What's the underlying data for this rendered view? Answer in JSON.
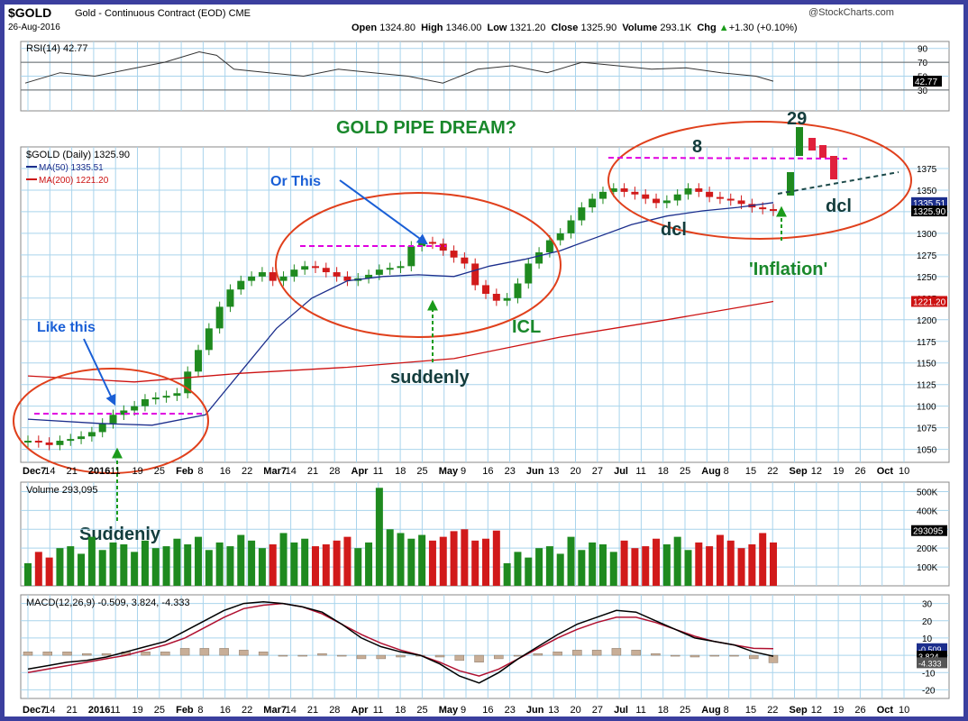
{
  "header": {
    "symbol": "$GOLD",
    "description": "Gold - Continuous Contract (EOD)  CME",
    "watermark": "@StockCharts.com",
    "date": "26-Aug-2016",
    "open_label": "Open",
    "open": "1324.80",
    "high_label": "High",
    "high": "1346.00",
    "low_label": "Low",
    "low": "1321.20",
    "close_label": "Close",
    "close": "1325.90",
    "volume_label": "Volume",
    "volume": "293.1K",
    "chg_label": "Chg",
    "chg": "+1.30 (+0.10%)",
    "chg_arrow": "▲"
  },
  "chart_data": [
    {
      "type": "line",
      "panel": "rsi",
      "label": "RSI(14) 42.77",
      "last_value": "42.77",
      "ylim": [
        0,
        100
      ],
      "yticks": [
        30,
        50,
        70,
        90
      ],
      "hlines": [
        30,
        70
      ],
      "approx_points": [
        [
          0,
          40
        ],
        [
          10,
          55
        ],
        [
          20,
          50
        ],
        [
          30,
          60
        ],
        [
          40,
          70
        ],
        [
          50,
          85
        ],
        [
          55,
          80
        ],
        [
          60,
          60
        ],
        [
          70,
          55
        ],
        [
          80,
          50
        ],
        [
          90,
          60
        ],
        [
          100,
          55
        ],
        [
          110,
          50
        ],
        [
          120,
          40
        ],
        [
          130,
          60
        ],
        [
          140,
          65
        ],
        [
          150,
          55
        ],
        [
          160,
          70
        ],
        [
          170,
          65
        ],
        [
          180,
          60
        ],
        [
          190,
          62
        ],
        [
          200,
          55
        ],
        [
          210,
          50
        ],
        [
          215,
          42.77
        ]
      ]
    },
    {
      "type": "candlestick",
      "panel": "price",
      "label": "$GOLD (Daily) 1325.90",
      "ylim": [
        1035,
        1400
      ],
      "yticks": [
        1050,
        1075,
        1100,
        1125,
        1150,
        1175,
        1200,
        1225,
        1250,
        1275,
        1300,
        1325,
        1350,
        1375
      ],
      "xticks": [
        "Dec7",
        "14",
        "21",
        "2016",
        "11",
        "19",
        "25",
        "Feb",
        "8",
        "16",
        "22",
        "Mar7",
        "14",
        "21",
        "28",
        "Apr",
        "11",
        "18",
        "25",
        "May",
        "9",
        "16",
        "23",
        "Jun",
        "13",
        "20",
        "27",
        "Jul",
        "11",
        "18",
        "25",
        "Aug",
        "8",
        "15",
        "22",
        "Sep",
        "12",
        "19",
        "26",
        "Oct",
        "10"
      ],
      "series": [
        {
          "name": "MA(50) 1335.51",
          "color": "#1c2e8c",
          "last": "1335.51",
          "approx_points": [
            [
              0,
              1085
            ],
            [
              20,
              1080
            ],
            [
              35,
              1078
            ],
            [
              50,
              1090
            ],
            [
              60,
              1140
            ],
            [
              70,
              1190
            ],
            [
              80,
              1225
            ],
            [
              90,
              1245
            ],
            [
              100,
              1250
            ],
            [
              110,
              1252
            ],
            [
              120,
              1250
            ],
            [
              130,
              1262
            ],
            [
              140,
              1270
            ],
            [
              150,
              1280
            ],
            [
              160,
              1295
            ],
            [
              170,
              1310
            ],
            [
              180,
              1320
            ],
            [
              190,
              1326
            ],
            [
              200,
              1330
            ],
            [
              210,
              1335.51
            ]
          ]
        },
        {
          "name": "MA(200) 1221.20",
          "color": "#cc1111",
          "last": "1221.20",
          "approx_points": [
            [
              0,
              1135
            ],
            [
              30,
              1128
            ],
            [
              60,
              1138
            ],
            [
              90,
              1145
            ],
            [
              120,
              1155
            ],
            [
              150,
              1180
            ],
            [
              180,
              1200
            ],
            [
              210,
              1221.2
            ]
          ]
        }
      ],
      "ohlc_approx_closes": [
        1060,
        1058,
        1055,
        1060,
        1062,
        1065,
        1070,
        1080,
        1090,
        1095,
        1100,
        1108,
        1110,
        1112,
        1115,
        1140,
        1165,
        1190,
        1215,
        1235,
        1245,
        1250,
        1255,
        1245,
        1250,
        1258,
        1262,
        1260,
        1255,
        1250,
        1245,
        1248,
        1252,
        1258,
        1260,
        1262,
        1285,
        1290,
        1288,
        1280,
        1272,
        1265,
        1240,
        1230,
        1222,
        1225,
        1242,
        1265,
        1278,
        1292,
        1300,
        1315,
        1330,
        1340,
        1348,
        1352,
        1348,
        1345,
        1340,
        1335,
        1338,
        1345,
        1352,
        1348,
        1342,
        1340,
        1338,
        1334,
        1330,
        1328,
        1325.9
      ],
      "annotations": [
        "GOLD PIPE DREAM?",
        "Or This",
        "Like this",
        "suddenly",
        "Suddenly",
        "ICL",
        "8",
        "dcl",
        "29",
        "dcl",
        "'Inflation'"
      ],
      "price_tags": [
        "1335.51",
        "1325.90",
        "1221.20"
      ]
    },
    {
      "type": "bar",
      "panel": "volume",
      "label": "Volume 293,095",
      "last_value": "293095",
      "ylim": [
        0,
        550000
      ],
      "yticks": [
        "100K",
        "200K",
        "300K",
        "400K",
        "500K"
      ],
      "approx_values": [
        120000,
        180000,
        150000,
        200000,
        210000,
        170000,
        260000,
        190000,
        230000,
        220000,
        180000,
        240000,
        200000,
        210000,
        250000,
        220000,
        260000,
        190000,
        230000,
        210000,
        270000,
        240000,
        200000,
        220000,
        280000,
        230000,
        250000,
        210000,
        220000,
        240000,
        260000,
        200000,
        230000,
        520000,
        300000,
        280000,
        250000,
        270000,
        240000,
        260000,
        290000,
        300000,
        240000,
        250000,
        293095
      ]
    },
    {
      "type": "line",
      "panel": "macd",
      "label": "MACD(12,26,9) -0.509, 3.824, -4.333",
      "values": {
        "macd": "-0.509",
        "signal": "3.824",
        "hist": "-4.333"
      },
      "ylim": [
        -25,
        35
      ],
      "yticks": [
        -20,
        -10,
        0,
        10,
        20,
        30
      ],
      "series": [
        {
          "name": "MACD",
          "color": "#000000"
        },
        {
          "name": "Signal",
          "color": "#b01030"
        }
      ],
      "approx_macd": [
        -8,
        -6,
        -4,
        -3,
        -1,
        2,
        5,
        8,
        14,
        20,
        26,
        30,
        31,
        30,
        28,
        25,
        18,
        10,
        5,
        2,
        0,
        -5,
        -12,
        -16,
        -10,
        -2,
        5,
        12,
        18,
        22,
        26,
        25,
        20,
        15,
        10,
        8,
        6,
        2,
        -0.509
      ],
      "approx_signal": [
        -10,
        -8,
        -6,
        -4,
        -2,
        0,
        3,
        6,
        10,
        16,
        22,
        27,
        29,
        30,
        28,
        24,
        18,
        12,
        7,
        3,
        0,
        -4,
        -9,
        -12,
        -8,
        -2,
        4,
        10,
        15,
        19,
        22,
        22,
        19,
        15,
        11,
        8,
        6,
        4,
        3.824
      ]
    }
  ],
  "annotations": {
    "title": "GOLD PIPE DREAM?",
    "or_this": "Or This",
    "like_this": "Like this",
    "suddenly_lower": "suddenly",
    "suddenly_upper": "Suddenly",
    "icl": "ICL",
    "eight": "8",
    "dcl1": "dcl",
    "twentynine": "29",
    "dcl2": "dcl",
    "inflation": "'Inflation'"
  },
  "colors": {
    "frame_border": "#3b3f9e",
    "grid": "#a9d4ec",
    "up_candle": "#1f8a1f",
    "down_candle": "#d11a1a",
    "ma50": "#1c2e8c",
    "ma200": "#cc1111",
    "macd": "#000000",
    "signal": "#b01030",
    "hist": "#c8ae97",
    "ellipse": "#e0401c",
    "pink_dashed": "#e000e0",
    "green_arrow": "#1a9b1a",
    "blue_label": "#1a5fd6",
    "green_label": "#19882b",
    "dark_label": "#133c3c"
  }
}
